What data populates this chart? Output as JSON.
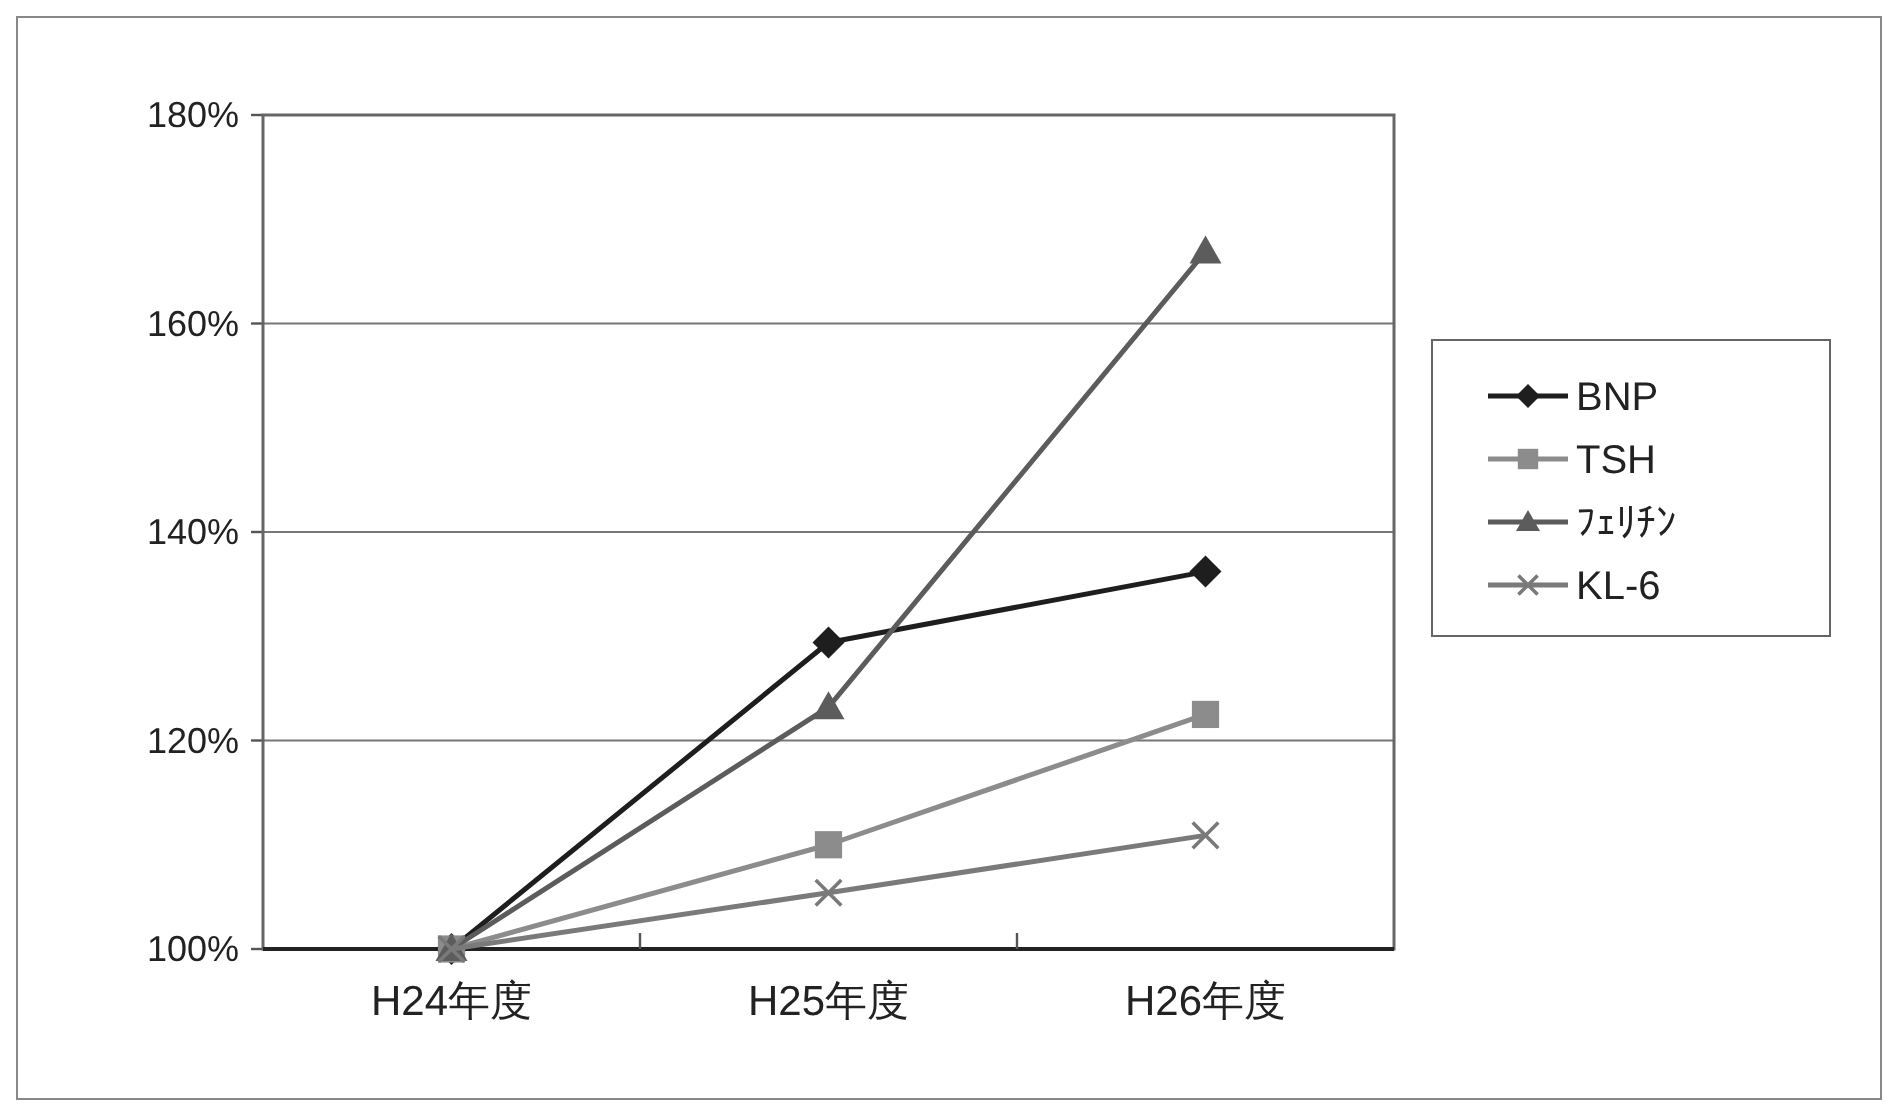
{
  "chart_data": {
    "type": "line",
    "categories": [
      "H24年度",
      "H25年度",
      "H26年度"
    ],
    "ylim": [
      100,
      180
    ],
    "yticks": [
      {
        "value": 100,
        "label": "100%"
      },
      {
        "value": 120,
        "label": "120%"
      },
      {
        "value": 140,
        "label": "140%"
      },
      {
        "value": 160,
        "label": "160%"
      },
      {
        "value": 180,
        "label": "180%"
      }
    ],
    "grid": "y",
    "legend": "right",
    "series": [
      {
        "name": "BNP",
        "color": "#1e1e1e",
        "marker": "diamond",
        "values": [
          100,
          129.4,
          136.2
        ]
      },
      {
        "name": "TSH",
        "color": "#8c8c8c",
        "marker": "square",
        "values": [
          100,
          110,
          122.5
        ]
      },
      {
        "name": "ﾌｪﾘﾁﾝ",
        "color": "#5c5c5c",
        "marker": "triangle",
        "values": [
          100,
          123.2,
          166.9
        ]
      },
      {
        "name": "KL-6",
        "color": "#7a7a7a",
        "marker": "cross",
        "values": [
          100,
          105.4,
          110.9
        ]
      }
    ]
  }
}
